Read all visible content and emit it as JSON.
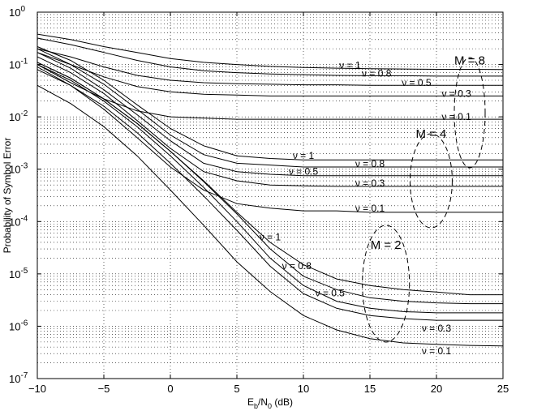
{
  "chart_data": {
    "type": "line",
    "title": "",
    "xlabel": {
      "main": "E",
      "sub1": "b",
      "mid": "/N",
      "sub2": "0",
      "suffix": " (dB)"
    },
    "ylabel": "Probability of Symbol Error",
    "xlim": [
      -10,
      25
    ],
    "ylim": [
      1e-07,
      1
    ],
    "yscale": "log",
    "grid": true,
    "x_ticks": [
      "−10",
      "−5",
      "0",
      "5",
      "10",
      "15",
      "20",
      "25"
    ],
    "y_tick_exponents": [
      "0",
      "-1",
      "-2",
      "-3",
      "-4",
      "-5",
      "-6",
      "-7"
    ],
    "y_tick_base": "10",
    "x": [
      -10,
      -7.5,
      -5,
      -2.5,
      0,
      2.5,
      5,
      7.5,
      10,
      12.5,
      15,
      17.5,
      20,
      22.5,
      25
    ],
    "groups": [
      {
        "label": "M = 8",
        "series": [
          {
            "label": "ν = 1",
            "values": [
              0.38,
              0.3,
              0.22,
              0.17,
              0.13,
              0.11,
              0.1,
              0.092,
              0.088,
              0.085,
              0.083,
              0.082,
              0.081,
              0.081,
              0.08
            ]
          },
          {
            "label": "ν = 0.8",
            "values": [
              0.32,
              0.24,
              0.17,
              0.12,
              0.09,
              0.076,
              0.07,
              0.066,
              0.064,
              0.062,
              0.061,
              0.061,
              0.06,
              0.06,
              0.06
            ]
          },
          {
            "label": "ν = 0.5",
            "values": [
              0.2,
              0.14,
              0.09,
              0.062,
              0.05,
              0.045,
              0.043,
              0.042,
              0.041,
              0.041,
              0.04,
              0.04,
              0.04,
              0.04,
              0.04
            ]
          },
          {
            "label": "ν = 0.3",
            "values": [
              0.17,
              0.1,
              0.058,
              0.038,
              0.03,
              0.027,
              0.026,
              0.025,
              0.025,
              0.025,
              0.025,
              0.025,
              0.025,
              0.025,
              0.025
            ]
          },
          {
            "label": "ν = 0.1",
            "values": [
              0.1,
              0.045,
              0.022,
              0.013,
              0.01,
              0.0095,
              0.009,
              0.009,
              0.009,
              0.009,
              0.009,
              0.009,
              0.009,
              0.009,
              0.009
            ]
          }
        ]
      },
      {
        "label": "M = 4",
        "series": [
          {
            "label": "ν = 1",
            "values": [
              0.22,
              0.12,
              0.05,
              0.017,
              0.006,
              0.0028,
              0.0018,
              0.0016,
              0.0015,
              0.0015,
              0.0015,
              0.0015,
              0.0015,
              0.0015,
              0.0015
            ]
          },
          {
            "label": "ν = 0.8",
            "values": [
              0.2,
              0.1,
              0.042,
              0.014,
              0.0045,
              0.0019,
              0.0013,
              0.0012,
              0.0011,
              0.0011,
              0.0011,
              0.0011,
              0.0011,
              0.0011,
              0.0011
            ]
          },
          {
            "label": "ν = 0.5",
            "values": [
              0.17,
              0.085,
              0.033,
              0.011,
              0.0035,
              0.0013,
              0.0009,
              0.0008,
              0.00075,
              0.00075,
              0.00075,
              0.00075,
              0.00075,
              0.00075,
              0.00075
            ]
          },
          {
            "label": "ν = 0.3",
            "values": [
              0.14,
              0.07,
              0.028,
              0.0085,
              0.0025,
              0.0009,
              0.0006,
              0.0005,
              0.00048,
              0.00047,
              0.00047,
              0.00047,
              0.00047,
              0.00047,
              0.00047
            ]
          },
          {
            "label": "ν = 0.1",
            "values": [
              0.09,
              0.04,
              0.014,
              0.004,
              0.0011,
              0.0004,
              0.00022,
              0.00018,
              0.00016,
              0.00016,
              0.00015,
              0.00015,
              0.00015,
              0.00015,
              0.00015
            ]
          }
        ]
      },
      {
        "label": "M = 2",
        "series": [
          {
            "label": "ν = 1",
            "values": [
              0.11,
              0.055,
              0.022,
              0.0075,
              0.0022,
              0.0006,
              0.00015,
              4e-05,
              1.5e-05,
              8e-06,
              6e-06,
              5e-06,
              4.5e-06,
              4e-06,
              4e-06
            ]
          },
          {
            "label": "ν = 0.8",
            "values": [
              0.11,
              0.055,
              0.022,
              0.0075,
              0.0022,
              0.00058,
              0.00014,
              3e-05,
              9e-06,
              5e-06,
              3.5e-06,
              3e-06,
              2.8e-06,
              2.7e-06,
              2.7e-06
            ]
          },
          {
            "label": "ν = 0.5",
            "values": [
              0.1,
              0.05,
              0.02,
              0.0065,
              0.0018,
              0.00045,
              0.0001,
              2e-05,
              6e-06,
              3e-06,
              2.2e-06,
              1.9e-06,
              1.8e-06,
              1.8e-06,
              1.8e-06
            ]
          },
          {
            "label": "ν = 0.3",
            "values": [
              0.08,
              0.04,
              0.016,
              0.005,
              0.0013,
              0.00031,
              6.8e-05,
              1.4e-05,
              4.2e-06,
              2.2e-06,
              1.6e-06,
              1.4e-06,
              1.3e-06,
              1.3e-06,
              1.3e-06
            ]
          },
          {
            "label": "ν = 0.1",
            "values": [
              0.04,
              0.018,
              0.0065,
              0.0018,
              0.0004,
              8.5e-05,
              1.7e-05,
              4.6e-06,
              1.6e-06,
              8.5e-07,
              5.8e-07,
              4.8e-07,
              4.5e-07,
              4.3e-07,
              4.2e-07
            ]
          }
        ]
      }
    ]
  }
}
